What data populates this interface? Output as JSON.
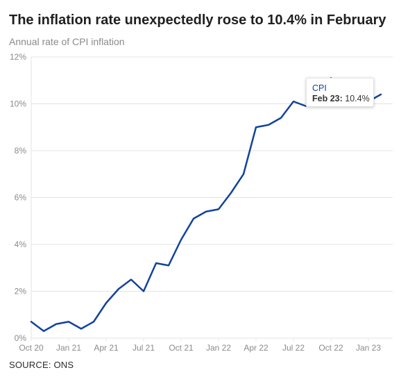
{
  "title": "The inflation rate unexpectedly rose to 10.4% in February",
  "subtitle": "Annual rate of CPI inflation",
  "source": "SOURCE: ONS",
  "colors": {
    "line": "#12439d",
    "grid": "#e3e3e3",
    "text": "#1f1f1f",
    "muted": "#8a8a8a"
  },
  "tooltip": {
    "series": "CPI",
    "date": "Feb 23:",
    "value": "10.4%"
  },
  "chart_data": {
    "type": "line",
    "title": "The inflation rate unexpectedly rose to 10.4% in February",
    "subtitle": "Annual rate of CPI inflation",
    "xlabel": "",
    "ylabel": "",
    "ylim": [
      0,
      12
    ],
    "y_ticks": [
      0,
      2,
      4,
      6,
      8,
      10,
      12
    ],
    "y_tick_labels": [
      "0%",
      "2%",
      "4%",
      "6%",
      "8%",
      "10%",
      "12%"
    ],
    "x_tick_labels": [
      "Oct 20",
      "Jan 21",
      "Apr 21",
      "Jul 21",
      "Oct 21",
      "Jan 22",
      "Apr 22",
      "Jul 22",
      "Oct 22",
      "Jan 23"
    ],
    "grid": true,
    "x": [
      "Oct 20",
      "Nov 20",
      "Dec 20",
      "Jan 21",
      "Feb 21",
      "Mar 21",
      "Apr 21",
      "May 21",
      "Jun 21",
      "Jul 21",
      "Aug 21",
      "Sep 21",
      "Oct 21",
      "Nov 21",
      "Dec 21",
      "Jan 22",
      "Feb 22",
      "Mar 22",
      "Apr 22",
      "May 22",
      "Jun 22",
      "Jul 22",
      "Aug 22",
      "Sep 22",
      "Oct 22",
      "Nov 22",
      "Dec 22",
      "Jan 23",
      "Feb 23"
    ],
    "series": [
      {
        "name": "CPI",
        "values": [
          0.7,
          0.3,
          0.6,
          0.7,
          0.4,
          0.7,
          1.5,
          2.1,
          2.5,
          2.0,
          3.2,
          3.1,
          4.2,
          5.1,
          5.4,
          5.5,
          6.2,
          7.0,
          9.0,
          9.1,
          9.4,
          10.1,
          9.9,
          10.1,
          11.1,
          10.7,
          10.5,
          10.1,
          10.4
        ]
      }
    ]
  }
}
